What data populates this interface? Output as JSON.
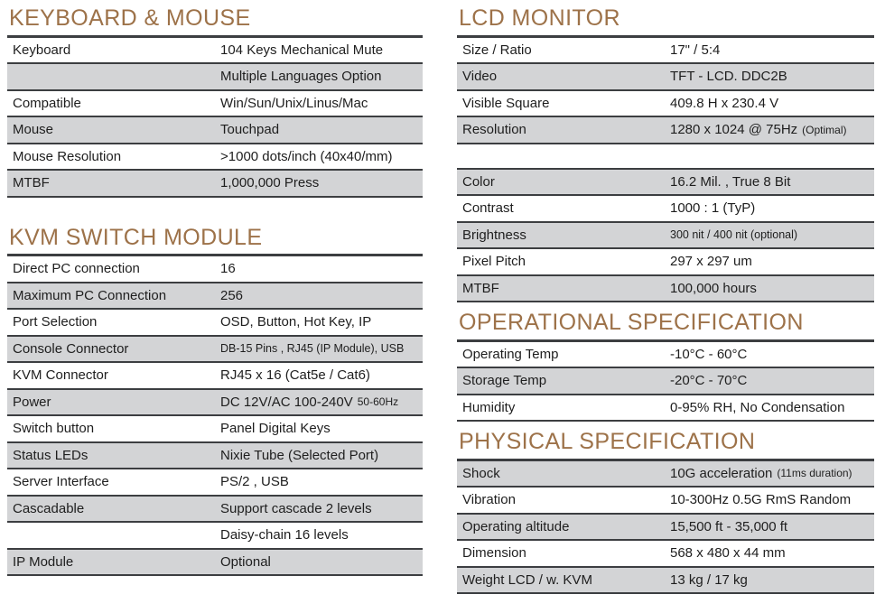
{
  "theme": {
    "accent": "#9d7249",
    "rule": "#3c3e41",
    "shaded_bg": "#d3d4d6",
    "text": "#1e1e1e",
    "page_bg": "#ffffff"
  },
  "left": {
    "sections": [
      {
        "title": "KEYBOARD & MOUSE",
        "rows": [
          {
            "label": "Keyboard",
            "value": "104 Keys Mechanical Mute"
          },
          {
            "label": "",
            "value": "Multiple Languages Option"
          },
          {
            "label": "Compatible",
            "value": "Win/Sun/Unix/Linus/Mac"
          },
          {
            "label": "Mouse",
            "value": "Touchpad"
          },
          {
            "label": "Mouse Resolution",
            "value": ">1000 dots/inch (40x40/mm)"
          },
          {
            "label": "MTBF",
            "value": "1,000,000 Press"
          }
        ]
      },
      {
        "title": "KVM SWITCH MODULE",
        "rows": [
          {
            "label": "Direct PC connection",
            "value": "16"
          },
          {
            "label": "Maximum PC Connection",
            "value": "256"
          },
          {
            "label": "Port Selection",
            "value": "OSD, Button, Hot Key, IP"
          },
          {
            "label": "Console Connector",
            "value": "DB-15 Pins , RJ45 (IP Module), USB"
          },
          {
            "label": "KVM Connector",
            "value": "RJ45 x 16 (Cat5e / Cat6)"
          },
          {
            "label": "Power",
            "value": "DC 12V/AC 100-240V",
            "suffix": "50-60Hz"
          },
          {
            "label": "Switch button",
            "value": "Panel Digital Keys"
          },
          {
            "label": "Status LEDs",
            "value": "Nixie Tube (Selected Port)"
          },
          {
            "label": "Server Interface",
            "value": "PS/2 , USB"
          },
          {
            "label": "Cascadable",
            "value": "Support cascade 2 levels"
          },
          {
            "label": "",
            "value": "Daisy-chain 16 levels"
          },
          {
            "label": "IP Module",
            "value": "Optional"
          }
        ]
      }
    ]
  },
  "right": {
    "sections": [
      {
        "title": "LCD MONITOR",
        "rows_a": [
          {
            "label": "Size / Ratio",
            "value": "17\" / 5:4"
          },
          {
            "label": "Video",
            "value": "TFT - LCD. DDC2B"
          },
          {
            "label": "Visible Square",
            "value": "409.8 H x 230.4 V"
          },
          {
            "label": "Resolution",
            "value": "1280 x 1024 @ 75Hz",
            "suffix": "(Optimal)"
          }
        ],
        "rows_b": [
          {
            "label": "Color",
            "value": "16.2 Mil. , True 8 Bit"
          },
          {
            "label": "Contrast",
            "value": "1000 : 1 (TyP)"
          },
          {
            "label": "Brightness",
            "value": "300 nit / 400 nit (optional)"
          },
          {
            "label": "Pixel Pitch",
            "value": "297 x 297 um"
          },
          {
            "label": "MTBF",
            "value": "100,000 hours"
          }
        ]
      },
      {
        "title": "OPERATIONAL SPECIFICATION",
        "rows": [
          {
            "label": "Operating Temp",
            "value": "-10°C - 60°C"
          },
          {
            "label": "Storage Temp",
            "value": "-20°C - 70°C"
          },
          {
            "label": "Humidity",
            "value": "0-95% RH, No Condensation"
          }
        ]
      },
      {
        "title": "PHYSICAL SPECIFICATION",
        "rows": [
          {
            "label": "Shock",
            "value": "10G acceleration",
            "suffix": "(11ms duration)"
          },
          {
            "label": "Vibration",
            "value": "10-300Hz 0.5G RmS Random"
          },
          {
            "label": "Operating altitude",
            "value": "15,500 ft - 35,000 ft"
          },
          {
            "label": "Dimension",
            "value": "568 x 480 x 44 mm"
          },
          {
            "label": "Weight LCD / w. KVM",
            "value": "13 kg / 17 kg"
          }
        ]
      }
    ]
  }
}
